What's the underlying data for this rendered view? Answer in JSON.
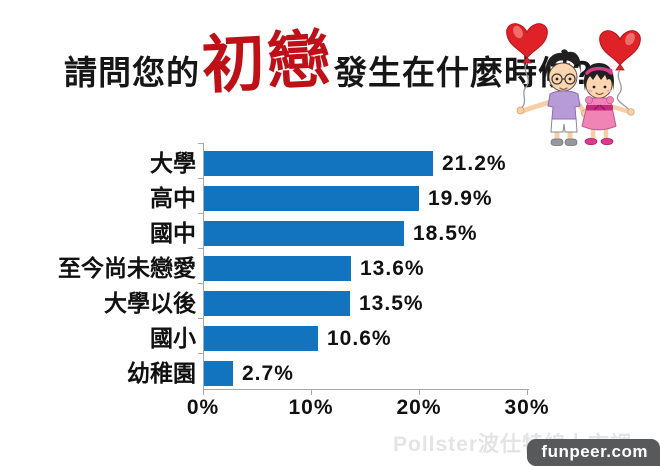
{
  "title": {
    "prefix": "請問您的",
    "highlight": "初戀",
    "suffix": "發生在什麼時候?"
  },
  "chart_data": {
    "type": "bar",
    "orientation": "horizontal",
    "title": "請問您的初戀發生在什麼時候?",
    "categories": [
      "大學",
      "高中",
      "國中",
      "至今尚未戀愛",
      "大學以後",
      "國小",
      "幼稚園"
    ],
    "values": [
      21.2,
      19.9,
      18.5,
      13.6,
      13.5,
      10.6,
      2.7
    ],
    "value_labels": [
      "21.2%",
      "19.9%",
      "18.5%",
      "13.6%",
      "13.5%",
      "10.6%",
      "2.7%"
    ],
    "xlim": [
      0,
      30
    ],
    "x_tick_labels": [
      "0%",
      "10%",
      "20%",
      "30%"
    ],
    "x_tick_values": [
      0,
      10,
      20,
      30
    ],
    "grid": false,
    "legend": "none",
    "bar_color": "#1274BF"
  },
  "watermark": "Pollster波仕特線上市調",
  "badge": "funpeer.com",
  "illustration": "boy-and-girl-holding-heart-balloons",
  "colors": {
    "bar": "#1274BF",
    "title_highlight": "#BE1117",
    "text": "#111111",
    "axis": "#A8A8A8",
    "watermark": "#E4E4E4",
    "badge_bg": "#58595B",
    "balloon": "#DF2128"
  }
}
